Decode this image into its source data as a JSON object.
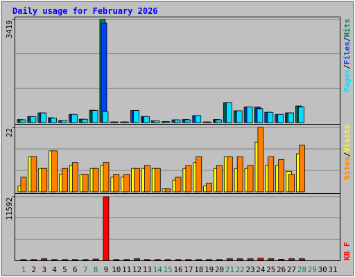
{
  "chart_data": [
    {
      "type": "bar",
      "title": "Daily usage for February 2026",
      "legend_separator": "/",
      "ylim": [
        0,
        3419
      ],
      "yticks": [
        3419
      ],
      "series": [
        {
          "name": "Hits",
          "color": "#00805c",
          "values": [
            100,
            200,
            320,
            160,
            70,
            270,
            110,
            410,
            3419,
            20,
            20,
            400,
            200,
            60,
            30,
            90,
            100,
            230,
            20,
            100,
            660,
            390,
            520,
            520,
            340,
            270,
            320,
            550,
            null,
            null,
            null
          ]
        },
        {
          "name": "Files",
          "color": "#0040ff",
          "values": [
            90,
            200,
            320,
            150,
            70,
            270,
            110,
            400,
            3300,
            20,
            20,
            400,
            200,
            60,
            30,
            90,
            100,
            230,
            20,
            100,
            660,
            390,
            520,
            480,
            340,
            270,
            320,
            530,
            null,
            null,
            null
          ]
        },
        {
          "name": "Pages",
          "color": "#00e0ff",
          "values": [
            90,
            200,
            320,
            150,
            70,
            270,
            110,
            400,
            360,
            20,
            20,
            400,
            200,
            60,
            30,
            90,
            90,
            230,
            20,
            90,
            660,
            390,
            520,
            460,
            340,
            270,
            320,
            520,
            null,
            null,
            null
          ]
        }
      ]
    },
    {
      "type": "bar",
      "legend_separator": "/",
      "ylim": [
        0,
        22
      ],
      "yticks": [
        22
      ],
      "series": [
        {
          "name": "Visits",
          "color": "#ffff00",
          "values": [
            2,
            12,
            8,
            14,
            6,
            9,
            6,
            8,
            9,
            5,
            5,
            8,
            8,
            8,
            1,
            4,
            8,
            10,
            2,
            8,
            12,
            8,
            8,
            17,
            9,
            9,
            7,
            13,
            null,
            null,
            null
          ]
        },
        {
          "name": "Sites",
          "color": "#ff8000",
          "values": [
            5,
            12,
            8,
            14,
            8,
            10,
            6,
            8,
            10,
            6,
            6,
            8,
            9,
            8,
            1,
            5,
            9,
            12,
            3,
            9,
            12,
            12,
            9,
            22,
            12,
            11,
            6,
            16,
            null,
            null,
            null
          ]
        }
      ]
    },
    {
      "type": "bar",
      "ylim": [
        0,
        11592
      ],
      "yticks": [
        11592
      ],
      "categories": [
        "1",
        "2",
        "3",
        "4",
        "5",
        "6",
        "7",
        "8",
        "9",
        "10",
        "11",
        "12",
        "13",
        "14",
        "15",
        "16",
        "17",
        "18",
        "19",
        "20",
        "21",
        "22",
        "23",
        "24",
        "25",
        "26",
        "27",
        "28",
        "29",
        "30",
        "31"
      ],
      "category_colors": [
        "#00805c",
        "#000000",
        "#000000",
        "#000000",
        "#000000",
        "#000000",
        "#00805c",
        "#00805c",
        "#000000",
        "#000000",
        "#000000",
        "#000000",
        "#000000",
        "#00805c",
        "#00805c",
        "#000000",
        "#000000",
        "#000000",
        "#000000",
        "#000000",
        "#00805c",
        "#00805c",
        "#000000",
        "#000000",
        "#000000",
        "#000000",
        "#000000",
        "#00805c",
        "#00805c",
        "#000000",
        "#000000"
      ],
      "series": [
        {
          "name": "KB F",
          "color": "#ff0000",
          "values": [
            150,
            150,
            300,
            150,
            150,
            150,
            150,
            250,
            11592,
            150,
            150,
            300,
            150,
            150,
            150,
            150,
            150,
            150,
            150,
            150,
            300,
            300,
            300,
            400,
            300,
            200,
            300,
            300,
            null,
            null,
            null
          ]
        }
      ]
    }
  ]
}
